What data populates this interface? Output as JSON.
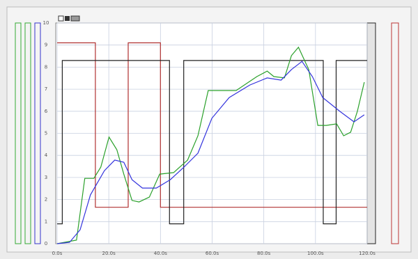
{
  "chart_data": {
    "type": "line",
    "xlim": [
      0,
      120
    ],
    "xticks": [
      {
        "value": 0,
        "label": "0.0s"
      },
      {
        "value": 20,
        "label": "20.0s"
      },
      {
        "value": 40,
        "label": "40.0s"
      },
      {
        "value": 60,
        "label": "60.0s"
      },
      {
        "value": 80,
        "label": "80.0s"
      },
      {
        "value": 100,
        "label": "100.0s"
      },
      {
        "value": 120,
        "label": "120.0s"
      }
    ],
    "ylim": [
      0,
      10
    ],
    "yticks": [
      0,
      1,
      2,
      3,
      4,
      5,
      6,
      7,
      8,
      9,
      10
    ],
    "grid": true,
    "series": [
      {
        "name": "red",
        "color": "#b03030",
        "x": [
          0,
          14.8,
          14.8,
          27.5,
          27.5,
          40,
          40,
          120
        ],
        "values": [
          9.1,
          9.1,
          1.65,
          1.65,
          9.1,
          9.1,
          1.65,
          1.65
        ]
      },
      {
        "name": "black",
        "color": "#222222",
        "x": [
          0,
          2,
          2,
          43.5,
          43.5,
          49,
          49,
          103,
          103,
          108,
          108,
          120
        ],
        "values": [
          0.9,
          0.9,
          8.3,
          8.3,
          0.9,
          0.9,
          8.3,
          8.3,
          0.9,
          0.9,
          8.3,
          8.3
        ]
      },
      {
        "name": "green",
        "color": "#2aa02a",
        "x": [
          0,
          7.5,
          10.7,
          14.2,
          16.9,
          20.1,
          23.1,
          25.8,
          29,
          31.7,
          35.7,
          39.7,
          45.1,
          50.5,
          54.5,
          58.5,
          69.3,
          77.3,
          81.3,
          83.9,
          88,
          90.7,
          93.4,
          97.4,
          100.9,
          104.2,
          108.2,
          110.9,
          113.6,
          116.2,
          118.9
        ],
        "values": [
          0,
          0.16,
          2.96,
          2.96,
          3.47,
          4.83,
          4.26,
          3.15,
          1.96,
          1.89,
          2.11,
          3.15,
          3.22,
          3.79,
          4.89,
          6.94,
          6.94,
          7.57,
          7.82,
          7.57,
          7.51,
          8.52,
          8.9,
          7.89,
          5.36,
          5.36,
          5.43,
          4.89,
          5.05,
          5.99,
          7.32
        ]
      },
      {
        "name": "blue",
        "color": "#3333dd",
        "x": [
          0,
          4.8,
          8.9,
          12.9,
          18.3,
          22.3,
          25.8,
          29,
          33,
          38.4,
          43.8,
          49.1,
          54.5,
          59.9,
          66.6,
          74.6,
          81.3,
          86.7,
          90.7,
          94.8,
          98.8,
          102.8,
          109.5,
          114.9,
          118.9
        ],
        "values": [
          0,
          0.06,
          0.63,
          2.21,
          3.31,
          3.79,
          3.69,
          2.9,
          2.52,
          2.52,
          2.9,
          3.47,
          4.1,
          5.68,
          6.62,
          7.19,
          7.51,
          7.41,
          7.89,
          8.26,
          7.57,
          6.62,
          5.99,
          5.52,
          5.84
        ]
      }
    ]
  }
}
